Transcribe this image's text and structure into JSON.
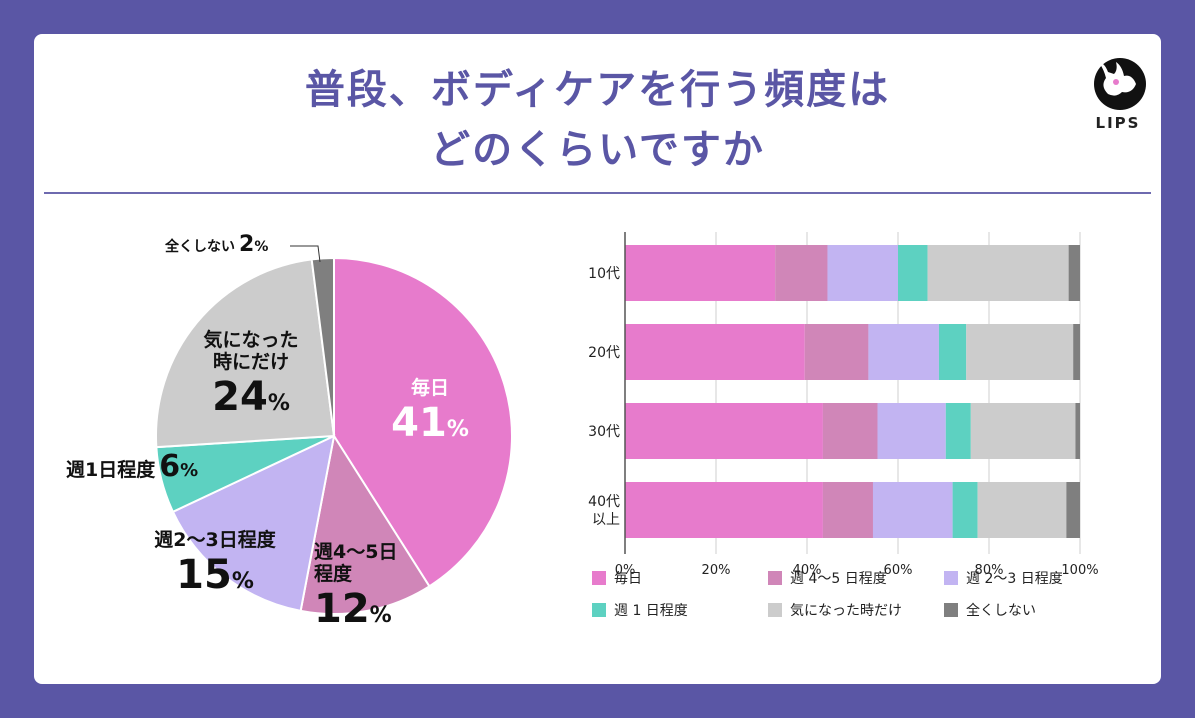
{
  "title_line1": "普段、ボディケアを行う頻度は",
  "title_line2": "どのくらいですか",
  "logo_text": "LIPS",
  "colors": [
    "#e77bcc",
    "#d086b8",
    "#c2b4f2",
    "#5dd1c1",
    "#cccccc",
    "#7f7f7f"
  ],
  "chart_data": [
    {
      "type": "pie",
      "labels": [
        "毎日",
        "週4〜5日程度",
        "週2〜3日程度",
        "週1日程度",
        "気になった時にだけ",
        "全くしない"
      ],
      "values": [
        41,
        12,
        15,
        6,
        24,
        2
      ],
      "value_suffix": "%",
      "display_labels": {
        "daily_name": "毎日",
        "daily_pct": "41",
        "w45_line1": "週4〜5日",
        "w45_line2": "程度",
        "w45_pct": "12",
        "w23_name": "週2〜3日程度",
        "w23_pct": "15",
        "w1_name": "週1日程度",
        "w1_pct": "6",
        "whenever_line1": "気になった",
        "whenever_line2": "時にだけ",
        "whenever_pct": "24",
        "never_name": "全くしない",
        "never_pct": "2"
      }
    },
    {
      "type": "bar",
      "orientation": "horizontal",
      "stacked": true,
      "categories": [
        "10代",
        "20代",
        "30代",
        "40代\n以上"
      ],
      "series": [
        {
          "name": "毎日",
          "values": [
            33,
            39.5,
            43.5,
            43.5
          ]
        },
        {
          "name": "週 4〜5 日程度",
          "values": [
            11.5,
            14,
            12,
            11
          ]
        },
        {
          "name": "週 2〜3 日程度",
          "values": [
            15.5,
            15.5,
            15,
            17.5
          ]
        },
        {
          "name": "週 1 日程度",
          "values": [
            6.5,
            6,
            5.5,
            5.5
          ]
        },
        {
          "name": "気になった時だけ",
          "values": [
            31,
            23.5,
            23,
            19.5
          ]
        },
        {
          "name": "全くしない",
          "values": [
            2.5,
            1.5,
            1,
            3
          ]
        }
      ],
      "xlim": [
        0,
        100
      ],
      "x_ticks": [
        "0%",
        "20%",
        "40%",
        "60%",
        "80%",
        "100%"
      ],
      "grid": true,
      "legend_position": "bottom"
    }
  ]
}
